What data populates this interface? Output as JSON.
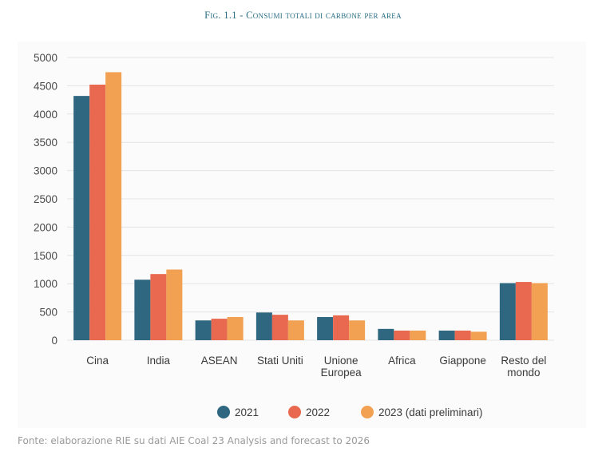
{
  "figure": {
    "title": "Fig. 1.1 - Consumi totali di carbone per area",
    "source": "Fonte: elaborazione RIE su dati AIE Coal 23 Analysis and forecast to 2026"
  },
  "chart_data": {
    "type": "bar",
    "categories": [
      [
        "Cina"
      ],
      [
        "India"
      ],
      [
        "ASEAN"
      ],
      [
        "Stati Uniti"
      ],
      [
        "Unione",
        "Europea"
      ],
      [
        "Africa"
      ],
      [
        "Giappone"
      ],
      [
        "Resto del",
        "mondo"
      ]
    ],
    "series": [
      {
        "name": "2021",
        "color": "#2f6780",
        "values": [
          4320,
          1070,
          350,
          490,
          410,
          200,
          170,
          1010
        ]
      },
      {
        "name": "2022",
        "color": "#e8694f",
        "values": [
          4520,
          1170,
          380,
          450,
          440,
          170,
          170,
          1030
        ]
      },
      {
        "name": "2023 (dati preliminari)",
        "color": "#f2a153",
        "values": [
          4740,
          1250,
          410,
          350,
          350,
          170,
          150,
          1010
        ]
      }
    ],
    "ylim": [
      0,
      5000
    ],
    "yticks": [
      0,
      500,
      1000,
      1500,
      2000,
      2500,
      3000,
      3500,
      4000,
      4500,
      5000
    ],
    "grid": true,
    "legend_position": "bottom-center"
  }
}
